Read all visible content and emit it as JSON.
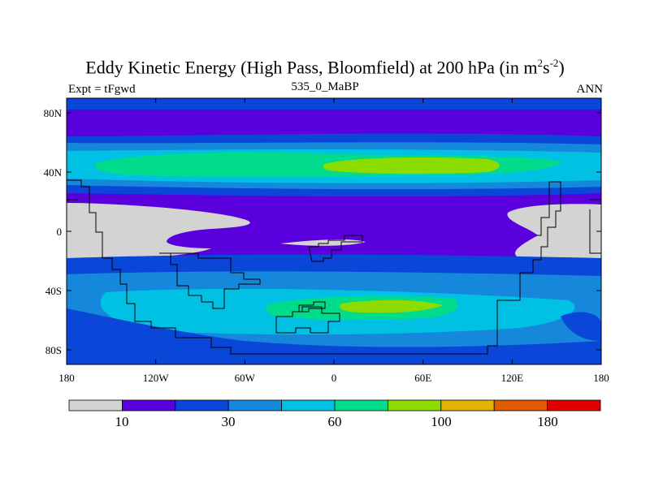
{
  "title": {
    "main": "Eddy Kinetic Energy (High Pass, Bloomfield) at 200 hPa (in m",
    "sup1": "2",
    "mid": "s",
    "sup2": "-2",
    "end": ")"
  },
  "subtitle_left": "Expt = tFgwd",
  "subtitle_center": "535_0_MaBP",
  "subtitle_right": "ANN",
  "chart_data": {
    "type": "heatmap",
    "x_ticks": [
      "180",
      "120W",
      "60W",
      "0",
      "60E",
      "120E",
      "180"
    ],
    "y_ticks": [
      "80N",
      "40N",
      "0",
      "40S",
      "80S"
    ],
    "colorbar": {
      "colors": [
        "#d3d3d3",
        "#5a00dc",
        "#0a46d8",
        "#1688dc",
        "#00c0e4",
        "#00dc8c",
        "#8cdc00",
        "#e0b400",
        "#e05a00",
        "#e00000"
      ],
      "labels": [
        "10",
        "30",
        "60",
        "100",
        "180"
      ]
    }
  }
}
